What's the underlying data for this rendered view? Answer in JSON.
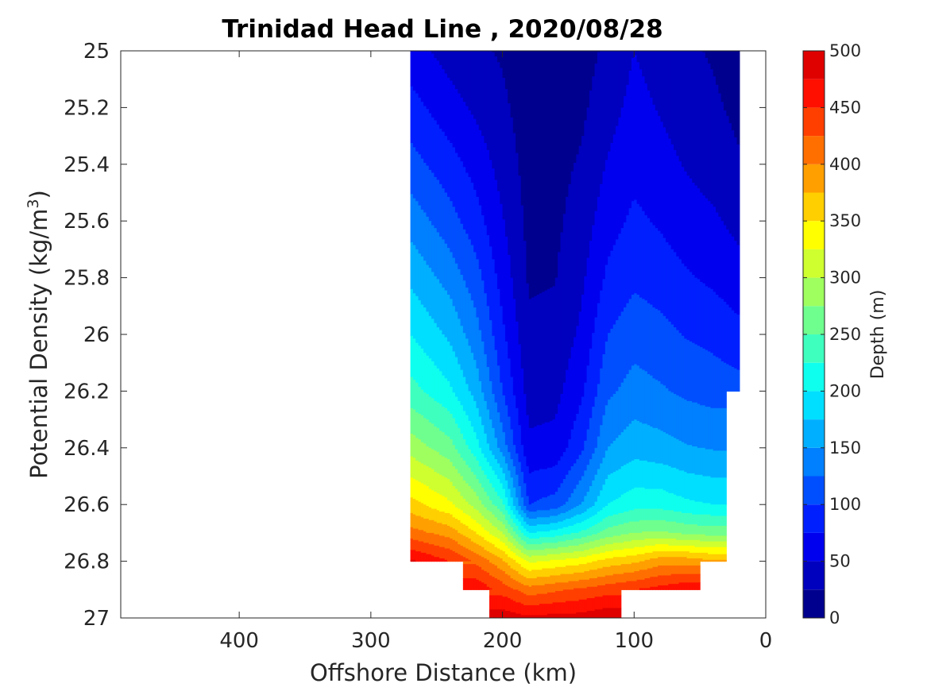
{
  "chart_data": {
    "type": "heatmap",
    "subtype": "filled-contour",
    "title": "Trinidad Head Line , 2020/08/28",
    "xlabel": "Offshore Distance (km)",
    "ylabel": "Potential Density (kg/m",
    "ylabel_sup": "3",
    "ylabel_end": ")",
    "colorbar_label": "Depth (m)",
    "x_reversed": true,
    "xlim": [
      490,
      0
    ],
    "ylim": [
      27,
      25
    ],
    "x_ticks": [
      400,
      300,
      200,
      100,
      0
    ],
    "y_ticks": [
      25,
      25.2,
      25.4,
      25.6,
      25.8,
      26,
      26.2,
      26.4,
      26.6,
      26.8,
      27
    ],
    "colorbar_range": [
      0,
      500
    ],
    "colorbar_ticks": [
      0,
      50,
      100,
      150,
      200,
      250,
      300,
      350,
      400,
      450,
      500
    ],
    "colormap": "jet",
    "contour_step": 25,
    "colors": [
      "#00008f",
      "#0000bf",
      "#0000ef",
      "#001fff",
      "#004fff",
      "#007fff",
      "#00afff",
      "#00dfff",
      "#0fffef",
      "#3fffbf",
      "#6fff8f",
      "#9fff5f",
      "#cfff2f",
      "#ffff00",
      "#ffcf00",
      "#ff9f00",
      "#ff6f00",
      "#ff3f00",
      "#ff0f00",
      "#df0000",
      "#af0000"
    ],
    "depth_at_density_by_distance": {
      "densities": [
        25,
        25.2,
        25.4,
        25.6,
        25.8,
        26,
        26.2,
        26.4,
        26.6,
        26.7,
        26.8,
        26.9,
        27
      ],
      "stations": [
        {
          "x": 270,
          "depth": [
            60,
            85,
            110,
            140,
            170,
            200,
            235,
            290,
            360,
            410,
            480,
            null,
            null
          ]
        },
        {
          "x": 240,
          "depth": [
            40,
            60,
            85,
            110,
            140,
            170,
            205,
            260,
            330,
            390,
            450,
            null,
            null
          ]
        },
        {
          "x": 220,
          "depth": [
            30,
            45,
            65,
            85,
            110,
            135,
            165,
            210,
            290,
            350,
            420,
            470,
            null
          ]
        },
        {
          "x": 200,
          "depth": [
            22,
            30,
            40,
            52,
            65,
            80,
            100,
            140,
            230,
            300,
            380,
            440,
            490
          ]
        },
        {
          "x": 180,
          "depth": [
            10,
            12,
            15,
            18,
            22,
            30,
            40,
            55,
            100,
            200,
            320,
            410,
            480
          ]
        },
        {
          "x": 160,
          "depth": [
            12,
            14,
            17,
            20,
            24,
            32,
            42,
            58,
            110,
            210,
            330,
            420,
            485
          ]
        },
        {
          "x": 140,
          "depth": [
            15,
            20,
            28,
            36,
            45,
            55,
            70,
            95,
            150,
            230,
            340,
            430,
            485
          ]
        },
        {
          "x": 120,
          "depth": [
            30,
            40,
            52,
            65,
            80,
            100,
            120,
            150,
            200,
            260,
            360,
            440,
            495
          ]
        },
        {
          "x": 100,
          "depth": [
            50,
            58,
            68,
            80,
            95,
            115,
            135,
            165,
            215,
            275,
            370,
            450,
            null
          ]
        },
        {
          "x": 80,
          "depth": [
            40,
            48,
            58,
            72,
            88,
            108,
            128,
            160,
            215,
            280,
            390,
            460,
            null
          ]
        },
        {
          "x": 60,
          "depth": [
            30,
            38,
            48,
            60,
            78,
            98,
            120,
            152,
            205,
            270,
            390,
            470,
            null
          ]
        },
        {
          "x": 40,
          "depth": [
            22,
            30,
            40,
            54,
            70,
            92,
            115,
            148,
            200,
            265,
            380,
            null,
            null
          ]
        },
        {
          "x": 20,
          "depth": [
            10,
            18,
            28,
            42,
            60,
            82,
            110,
            null,
            null,
            null,
            null,
            null,
            null
          ]
        }
      ]
    }
  }
}
